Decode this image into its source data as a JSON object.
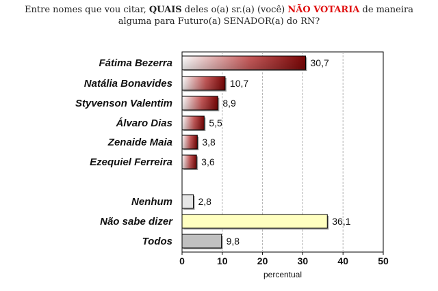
{
  "title": {
    "part1": "Entre nomes que vou citar, ",
    "part2": "QUAIS",
    "part3": " deles o(a) sr.(a) (você) ",
    "part4": "NÃO VOTARIA",
    "part5": " de maneira",
    "line2": "alguma para Futuro(a) SENADOR(a) do RN?"
  },
  "chart_data": {
    "type": "bar",
    "orientation": "horizontal",
    "categories": [
      "Fátima Bezerra",
      "Natália Bonavides",
      "Styvenson Valentim",
      "Álvaro Dias",
      "Zenaide Maia",
      "Ezequiel Ferreira",
      "Nenhum",
      "Não sabe dizer",
      "Todos"
    ],
    "values": [
      30.7,
      10.7,
      8.9,
      5.5,
      3.8,
      3.6,
      2.8,
      36.1,
      9.8
    ],
    "value_labels": [
      "30,7",
      "10,7",
      "8,9",
      "5,5",
      "3,8",
      "3,6",
      "2,8",
      "36,1",
      "9,8"
    ],
    "bar_colors": [
      "#8b0a0a",
      "#8b0a0a",
      "#8b0a0a",
      "#8b0a0a",
      "#8b0a0a",
      "#8b0a0a",
      "#e6e6e6",
      "#ffffc0",
      "#c0c0c0"
    ],
    "xlabel": "percentual",
    "xlim": [
      0,
      50
    ],
    "xticks": [
      0,
      10,
      20,
      30,
      40,
      50
    ],
    "grid": true
  }
}
